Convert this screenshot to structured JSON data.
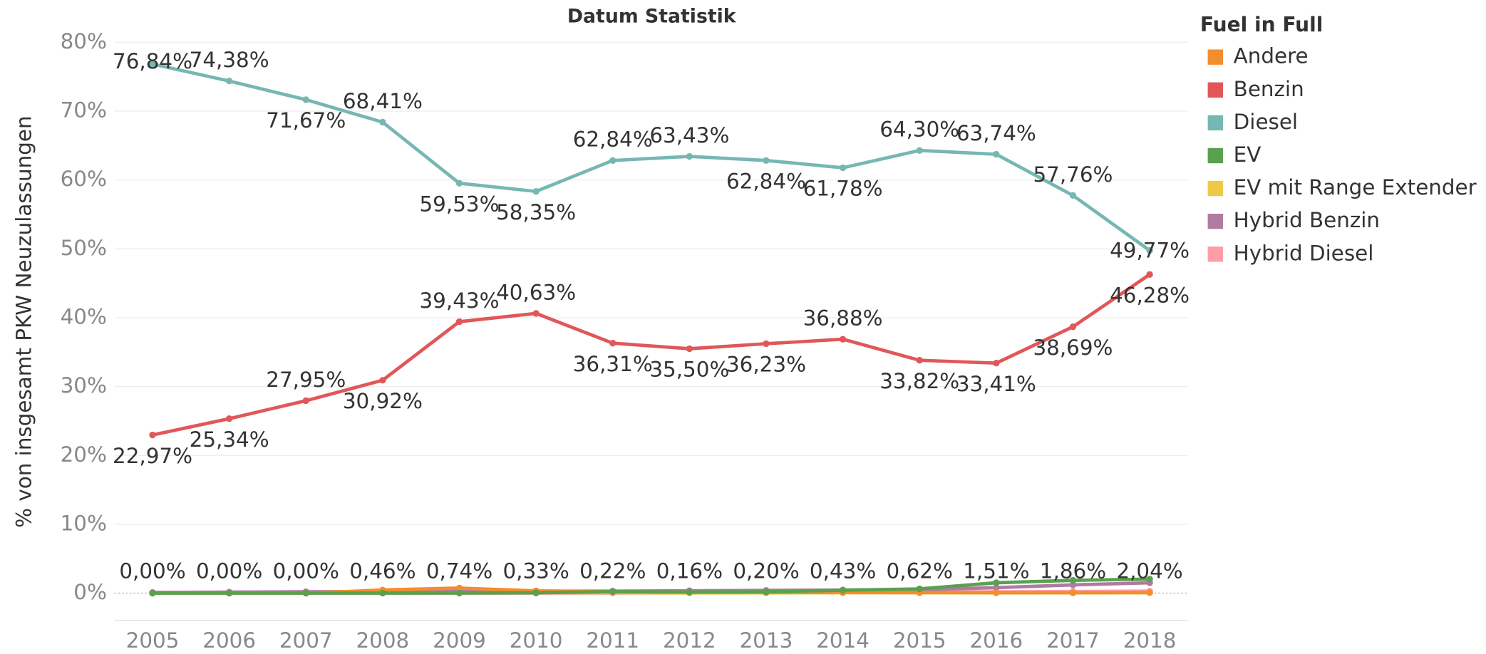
{
  "chart_data": {
    "type": "line",
    "title": "Datum Statistik",
    "y_label": "% von insgesamt PKW Neuzulassungen",
    "legend_title": "Fuel in Full",
    "legend": "right",
    "grid": true,
    "categories": [
      "2005",
      "2006",
      "2007",
      "2008",
      "2009",
      "2010",
      "2011",
      "2012",
      "2013",
      "2014",
      "2015",
      "2016",
      "2017",
      "2018"
    ],
    "ylim": [
      -4,
      82
    ],
    "yticks": [
      {
        "value": 0,
        "label": "0%"
      },
      {
        "value": 10,
        "label": "10%"
      },
      {
        "value": 20,
        "label": "20%"
      },
      {
        "value": 30,
        "label": "30%"
      },
      {
        "value": 40,
        "label": "40%"
      },
      {
        "value": 50,
        "label": "50%"
      },
      {
        "value": 60,
        "label": "60%"
      },
      {
        "value": 70,
        "label": "70%"
      },
      {
        "value": 80,
        "label": "80%"
      }
    ],
    "series": [
      {
        "name": "Andere",
        "color": "#f28e2b",
        "values": [
          0,
          0,
          0,
          0.46,
          0.74,
          0.33,
          0.2,
          0.15,
          0.12,
          0.1,
          0.08,
          0.06,
          0.05,
          0.08
        ],
        "value_labels": [
          "0,00%",
          "0,00%",
          "0,00%",
          "0,46%",
          "0,74%",
          "0,33%",
          null,
          null,
          null,
          null,
          null,
          null,
          null,
          null
        ]
      },
      {
        "name": "Benzin",
        "color": "#e15759",
        "values": [
          22.97,
          25.34,
          27.95,
          30.92,
          39.43,
          40.63,
          36.31,
          35.5,
          36.23,
          36.88,
          33.82,
          33.41,
          38.69,
          46.28
        ],
        "value_labels": [
          "22,97%",
          "25,34%",
          "27,95%",
          "30,92%",
          "39,43%",
          "40,63%",
          "36,31%",
          "35,50%",
          "36,23%",
          "36,88%",
          "33,82%",
          "33,41%",
          "38,69%",
          "46,28%"
        ]
      },
      {
        "name": "Diesel",
        "color": "#76b7b2",
        "values": [
          76.84,
          74.38,
          71.67,
          68.41,
          59.53,
          58.35,
          62.84,
          63.43,
          62.84,
          61.78,
          64.3,
          63.74,
          57.76,
          49.77
        ],
        "value_labels": [
          "76,84%",
          "74,38%",
          "71,67%",
          "68,41%",
          "59,53%",
          "58,35%",
          "62,84%",
          "63,43%",
          "62,84%",
          "61,78%",
          "64,30%",
          "63,74%",
          "57,76%",
          "49,77%"
        ]
      },
      {
        "name": "EV",
        "color": "#59a14f",
        "values": [
          0,
          0,
          0,
          0.01,
          0.02,
          0.05,
          0.22,
          0.16,
          0.2,
          0.43,
          0.62,
          1.51,
          1.86,
          2.04
        ],
        "value_labels": [
          null,
          null,
          null,
          null,
          null,
          null,
          "0,22%",
          "0,16%",
          "0,20%",
          "0,43%",
          "0,62%",
          "1,51%",
          "1,86%",
          "2,04%"
        ]
      },
      {
        "name": "EV mit Range Extender",
        "color": "#edc948",
        "values": [
          0,
          0,
          0,
          0,
          0,
          0,
          0.01,
          0.02,
          0.03,
          0.05,
          0.05,
          0.04,
          0.05,
          0.06
        ]
      },
      {
        "name": "Hybrid Benzin",
        "color": "#b07aa1",
        "values": [
          0.1,
          0.15,
          0.2,
          0.25,
          0.3,
          0.3,
          0.3,
          0.35,
          0.4,
          0.45,
          0.5,
          0.8,
          1.2,
          1.5
        ]
      },
      {
        "name": "Hybrid Diesel",
        "color": "#ff9da7",
        "values": [
          0,
          0,
          0,
          0,
          0,
          0.01,
          0.05,
          0.1,
          0.12,
          0.15,
          0.2,
          0.2,
          0.25,
          0.3
        ]
      }
    ]
  }
}
